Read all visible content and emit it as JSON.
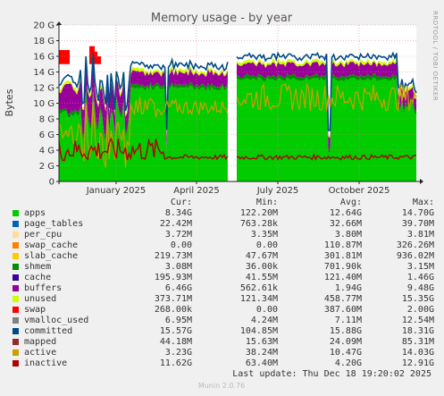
{
  "chart_data": {
    "type": "area",
    "title": "Memory usage - by year",
    "ylabel": "Bytes",
    "ylim": [
      0,
      20
    ],
    "y_unit": "G",
    "grid": true,
    "x_ticks": [
      "January 2025",
      "April 2025",
      "July 2025",
      "October 2025"
    ],
    "y_ticks": [
      "0",
      "2 G",
      "4 G",
      "6 G",
      "8 G",
      "10 G",
      "12 G",
      "14 G",
      "16 G",
      "18 G",
      "20 G"
    ],
    "side_label": "RRDTOOL / TOBI OETIKER",
    "legend_headers": {
      "cur": "Cur:",
      "min": "Min:",
      "avg": "Avg:",
      "max": "Max:"
    },
    "series": [
      {
        "name": "apps",
        "color": "#00cc00",
        "cur": "8.34G",
        "min": "122.20M",
        "avg": "12.64G",
        "max": "14.70G"
      },
      {
        "name": "page_tables",
        "color": "#0066b3",
        "cur": "22.42M",
        "min": "763.28k",
        "avg": "32.66M",
        "max": "39.70M"
      },
      {
        "name": "per_cpu",
        "color": "#ffdd99",
        "cur": "3.72M",
        "min": "3.35M",
        "avg": "3.80M",
        "max": "3.81M"
      },
      {
        "name": "swap_cache",
        "color": "#ff8000",
        "cur": "0.00",
        "min": "0.00",
        "avg": "110.87M",
        "max": "326.26M"
      },
      {
        "name": "slab_cache",
        "color": "#ffcc00",
        "cur": "219.73M",
        "min": "47.67M",
        "avg": "301.81M",
        "max": "936.02M"
      },
      {
        "name": "shmem",
        "color": "#008f00",
        "cur": "3.08M",
        "min": "36.00k",
        "avg": "701.90k",
        "max": "3.15M"
      },
      {
        "name": "cache",
        "color": "#330099",
        "cur": "195.93M",
        "min": "41.55M",
        "avg": "121.40M",
        "max": "1.46G"
      },
      {
        "name": "buffers",
        "color": "#990099",
        "cur": "6.46G",
        "min": "562.61k",
        "avg": "1.94G",
        "max": "9.48G"
      },
      {
        "name": "unused",
        "color": "#ccff00",
        "cur": "373.71M",
        "min": "121.34M",
        "avg": "458.77M",
        "max": "15.35G"
      },
      {
        "name": "swap",
        "color": "#ff0000",
        "cur": "268.00k",
        "min": "0.00",
        "avg": "387.60M",
        "max": "2.00G"
      },
      {
        "name": "vmalloc_used",
        "color": "#808080",
        "cur": "6.95M",
        "min": "4.24M",
        "avg": "7.11M",
        "max": "12.54M"
      },
      {
        "name": "committed",
        "color": "#004b87",
        "cur": "15.57G",
        "min": "104.85M",
        "avg": "15.88G",
        "max": "18.31G"
      },
      {
        "name": "mapped",
        "color": "#8f2d2d",
        "cur": "44.18M",
        "min": "15.63M",
        "avg": "24.09M",
        "max": "85.31M"
      },
      {
        "name": "active",
        "color": "#c8a000",
        "cur": "3.23G",
        "min": "38.24M",
        "avg": "10.47G",
        "max": "14.03G"
      },
      {
        "name": "inactive",
        "color": "#b00000",
        "cur": "11.62G",
        "min": "63.40M",
        "avg": "4.20G",
        "max": "12.91G"
      }
    ]
  },
  "last_update": "Last update: Thu Dec 18 19:20:02 2025",
  "footer": "Munin 2.0.76"
}
